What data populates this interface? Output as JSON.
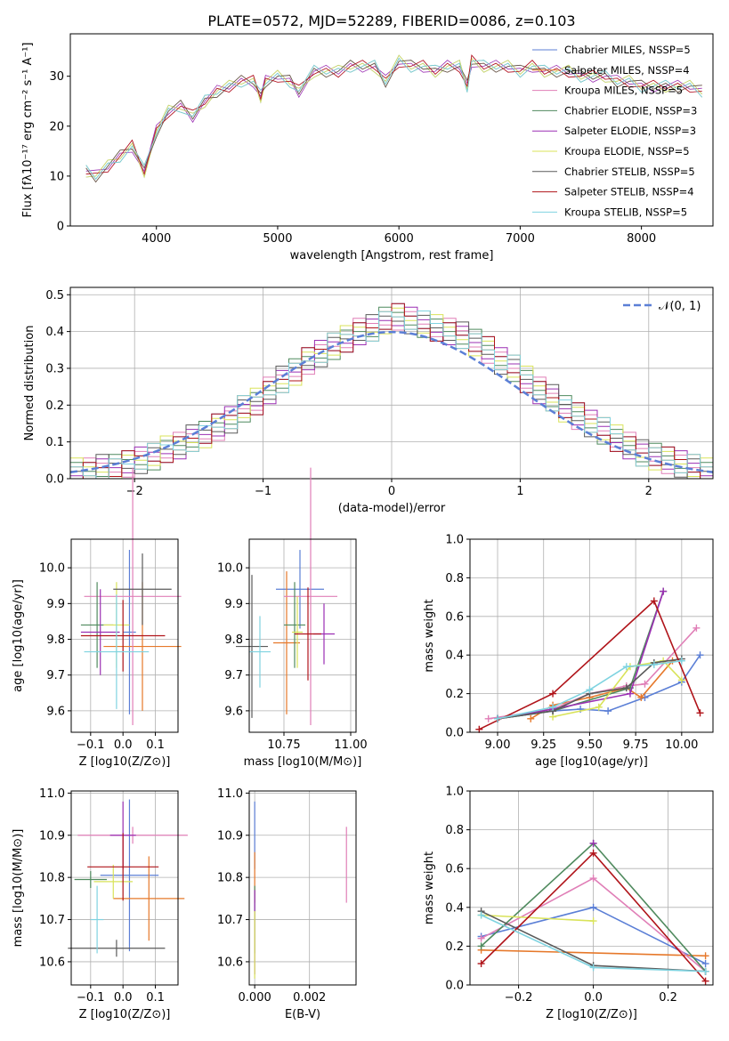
{
  "figure": {
    "title": "PLATE=0572, MJD=52289, FIBERID=0086, z=0.103"
  },
  "colors": {
    "grid": "#b0b0b0",
    "series": [
      "#5b7fd6",
      "#e6782a",
      "#e07fb7",
      "#4f8a5e",
      "#9b2fb3",
      "#d9e35a",
      "#5a5a5a",
      "#b0141a",
      "#7fd3e0"
    ]
  },
  "chart_data": [
    {
      "id": "spectrum",
      "type": "line",
      "xlabel": "wavelength [Angstrom, rest frame]",
      "ylabel": "Flux [fλ10⁻¹⁷ erg cm⁻² s⁻¹ A⁻¹]",
      "xlim": [
        3290,
        8590
      ],
      "ylim": [
        0,
        38.5
      ],
      "xticks": [
        4000,
        5000,
        6000,
        7000,
        8000
      ],
      "yticks": [
        0,
        10,
        20,
        30
      ],
      "grid": false,
      "legend": "top-right",
      "legend_entries": [
        "Chabrier MILES, NSSP=5",
        "Salpeter MILES, NSSP=4",
        "Kroupa MILES, NSSP=5",
        "Chabrier ELODIE, NSSP=3",
        "Salpeter ELODIE, NSSP=3",
        "Kroupa ELODIE, NSSP=5",
        "Chabrier STELIB, NSSP=5",
        "Salpeter STELIB, NSSP=4",
        "Kroupa STELIB, NSSP=5"
      ],
      "x": [
        3420,
        3500,
        3600,
        3700,
        3800,
        3900,
        4000,
        4100,
        4200,
        4300,
        4400,
        4500,
        4600,
        4700,
        4800,
        4860,
        4900,
        5000,
        5100,
        5175,
        5300,
        5400,
        5500,
        5600,
        5700,
        5800,
        5890,
        6000,
        6100,
        6200,
        6300,
        6400,
        6500,
        6563,
        6600,
        6700,
        6800,
        6900,
        7000,
        7100,
        7200,
        7300,
        7400,
        7500,
        7600,
        7700,
        7800,
        7900,
        8000,
        8100,
        8200,
        8300,
        8400,
        8500
      ],
      "y": [
        11,
        10,
        12,
        14,
        16,
        11,
        19,
        23,
        24,
        22,
        25,
        27,
        28,
        29,
        29,
        26,
        29,
        30,
        29,
        27,
        31,
        31,
        31,
        32,
        32,
        32,
        29,
        33,
        32,
        32,
        31,
        32,
        32,
        28,
        33,
        32,
        32,
        32,
        31,
        32,
        31,
        31,
        31,
        30,
        30,
        30,
        29,
        29,
        28,
        28,
        28,
        28,
        28,
        27
      ]
    },
    {
      "id": "residuals",
      "type": "bar",
      "xlabel": "(data-model)/error",
      "ylabel": "Normed distribution",
      "xlim": [
        -2.5,
        2.5
      ],
      "ylim": [
        0,
        0.52
      ],
      "xticks": [
        -2,
        -1,
        0,
        1,
        2
      ],
      "xtick_labels": [
        "−2",
        "−1",
        "0",
        "1",
        "2"
      ],
      "yticks": [
        0.0,
        0.1,
        0.2,
        0.3,
        0.4,
        0.5
      ],
      "grid": true,
      "legend": "top-right",
      "legend_label": "𝒩(0, 1)",
      "bin_width": 0.1,
      "x": [
        -2.5,
        -2.4,
        -2.3,
        -2.2,
        -2.1,
        -2.0,
        -1.9,
        -1.8,
        -1.7,
        -1.6,
        -1.5,
        -1.4,
        -1.3,
        -1.2,
        -1.1,
        -1.0,
        -0.9,
        -0.8,
        -0.7,
        -0.6,
        -0.5,
        -0.4,
        -0.3,
        -0.2,
        -0.1,
        0.0,
        0.1,
        0.2,
        0.3,
        0.4,
        0.5,
        0.6,
        0.7,
        0.8,
        0.9,
        1.0,
        1.1,
        1.2,
        1.3,
        1.4,
        1.5,
        1.6,
        1.7,
        1.8,
        1.9,
        2.0,
        2.1,
        2.2,
        2.3,
        2.4
      ],
      "values": [
        0.02,
        0.02,
        0.03,
        0.03,
        0.04,
        0.05,
        0.06,
        0.08,
        0.09,
        0.11,
        0.12,
        0.14,
        0.16,
        0.19,
        0.21,
        0.24,
        0.27,
        0.29,
        0.32,
        0.34,
        0.36,
        0.38,
        0.4,
        0.41,
        0.43,
        0.44,
        0.43,
        0.42,
        0.41,
        0.4,
        0.39,
        0.37,
        0.35,
        0.32,
        0.3,
        0.27,
        0.24,
        0.22,
        0.19,
        0.17,
        0.15,
        0.13,
        0.11,
        0.09,
        0.07,
        0.06,
        0.05,
        0.04,
        0.03,
        0.02
      ]
    },
    {
      "id": "age-vs-z",
      "type": "scatter",
      "xlabel": "Z [log10(Z/Z⊙)]",
      "ylabel": "age  [log10(age/yr)]",
      "xlim": [
        -0.16,
        0.17
      ],
      "ylim": [
        9.54,
        10.08
      ],
      "xticks": [
        -0.1,
        0.0,
        0.1
      ],
      "xtick_labels": [
        "−0.1",
        "0.0",
        "0.1"
      ],
      "yticks": [
        9.6,
        9.7,
        9.8,
        9.9,
        10.0
      ],
      "grid": true,
      "points": [
        {
          "x": 0.02,
          "y": 9.82,
          "xerr": 0.02,
          "yerr": 0.23
        },
        {
          "x": 0.06,
          "y": 9.78,
          "xerr": 0.12,
          "yerr": 0.18
        },
        {
          "x": 0.03,
          "y": 9.92,
          "xerr": 0.15,
          "yerr": 0.36
        },
        {
          "x": -0.08,
          "y": 9.84,
          "xerr": 0.05,
          "yerr": 0.12
        },
        {
          "x": -0.07,
          "y": 9.82,
          "xerr": 0.06,
          "yerr": 0.12
        },
        {
          "x": -0.02,
          "y": 9.84,
          "xerr": 0.04,
          "yerr": 0.12
        },
        {
          "x": 0.06,
          "y": 9.94,
          "xerr": 0.09,
          "yerr": 0.1
        },
        {
          "x": 0.0,
          "y": 9.81,
          "xerr": 0.13,
          "yerr": 0.1
        },
        {
          "x": -0.02,
          "y": 9.765,
          "xerr": 0.1,
          "yerr": 0.16
        }
      ]
    },
    {
      "id": "age-vs-mass",
      "type": "scatter",
      "xlabel": "mass [log10(M/M⊙)]",
      "ylabel": "",
      "xlim": [
        10.62,
        11.02
      ],
      "ylim": [
        9.54,
        10.08
      ],
      "xticks": [
        10.75,
        11.0
      ],
      "xtick_labels": [
        "10.75",
        "11.00"
      ],
      "yticks": [
        9.6,
        9.7,
        9.8,
        9.9,
        10.0
      ],
      "grid": true,
      "points": [
        {
          "x": 10.81,
          "y": 9.94,
          "xerr": 0.09,
          "yerr": 0.11
        },
        {
          "x": 10.76,
          "y": 9.79,
          "xerr": 0.05,
          "yerr": 0.2
        },
        {
          "x": 10.85,
          "y": 9.92,
          "xerr": 0.1,
          "yerr": 0.36
        },
        {
          "x": 10.79,
          "y": 9.84,
          "xerr": 0.04,
          "yerr": 0.12
        },
        {
          "x": 10.9,
          "y": 9.815,
          "xerr": 0.04,
          "yerr": 0.085
        },
        {
          "x": 10.8,
          "y": 9.82,
          "xerr": 0.02,
          "yerr": 0.1
        },
        {
          "x": 10.63,
          "y": 9.78,
          "xerr": 0.06,
          "yerr": 0.2
        },
        {
          "x": 10.84,
          "y": 9.815,
          "xerr": 0.05,
          "yerr": 0.13
        },
        {
          "x": 10.66,
          "y": 9.765,
          "xerr": 0.04,
          "yerr": 0.1
        }
      ]
    },
    {
      "id": "weight-vs-age",
      "type": "line",
      "xlabel": "age  [log10(age/yr)]",
      "ylabel": "mass weight",
      "xlim": [
        8.85,
        10.17
      ],
      "ylim": [
        0.0,
        1.0
      ],
      "xticks": [
        9.0,
        9.25,
        9.5,
        9.75,
        10.0
      ],
      "xtick_labels": [
        "9.00",
        "9.25",
        "9.50",
        "9.75",
        "10.00"
      ],
      "yticks": [
        0.0,
        0.2,
        0.4,
        0.6,
        0.8,
        1.0
      ],
      "grid": true,
      "series": [
        {
          "x": [
            9.0,
            9.3,
            9.45,
            9.6,
            9.8,
            10.0,
            10.1
          ],
          "values": [
            0.07,
            0.11,
            0.12,
            0.11,
            0.18,
            0.26,
            0.4
          ]
        },
        {
          "x": [
            9.18,
            9.3,
            9.5,
            9.7,
            9.78,
            9.95
          ],
          "values": [
            0.07,
            0.14,
            0.18,
            0.23,
            0.18,
            0.37
          ]
        },
        {
          "x": [
            8.95,
            9.3,
            9.5,
            9.7,
            9.8,
            10.08
          ],
          "values": [
            0.07,
            0.12,
            0.2,
            0.24,
            0.25,
            0.54
          ]
        },
        {
          "x": [
            9.0,
            9.3,
            9.72,
            9.9
          ],
          "values": [
            0.07,
            0.11,
            0.23,
            0.73
          ]
        },
        {
          "x": [
            9.0,
            9.3,
            9.72,
            9.9
          ],
          "values": [
            0.07,
            0.12,
            0.2,
            0.73
          ]
        },
        {
          "x": [
            9.3,
            9.55,
            9.72,
            9.9,
            10.0
          ],
          "values": [
            0.08,
            0.13,
            0.34,
            0.37,
            0.27
          ]
        },
        {
          "x": [
            9.0,
            9.3,
            9.5,
            9.7,
            9.85,
            10.0
          ],
          "values": [
            0.07,
            0.11,
            0.2,
            0.23,
            0.36,
            0.38
          ]
        },
        {
          "x": [
            8.9,
            9.3,
            9.85,
            10.1
          ],
          "values": [
            0.015,
            0.2,
            0.68,
            0.1
          ]
        },
        {
          "x": [
            9.0,
            9.3,
            9.5,
            9.7,
            9.85,
            10.0
          ],
          "values": [
            0.07,
            0.13,
            0.22,
            0.34,
            0.35,
            0.37
          ]
        }
      ]
    },
    {
      "id": "mass-vs-z",
      "type": "scatter",
      "xlabel": "Z [log10(Z/Z⊙)]",
      "ylabel": "mass [log10(M/M⊙)]",
      "xlim": [
        -0.16,
        0.17
      ],
      "ylim": [
        10.545,
        11.005
      ],
      "xticks": [
        -0.1,
        0.0,
        0.1
      ],
      "xtick_labels": [
        "−0.1",
        "0.0",
        "0.1"
      ],
      "yticks": [
        10.6,
        10.7,
        10.8,
        10.9,
        11.0
      ],
      "grid": true,
      "points": [
        {
          "x": 0.02,
          "y": 10.805,
          "xerr": 0.09,
          "yerr": 0.18
        },
        {
          "x": 0.08,
          "y": 10.75,
          "xerr": 0.11,
          "yerr": 0.1
        },
        {
          "x": 0.03,
          "y": 10.9,
          "xerr": 0.17,
          "yerr": 0.02
        },
        {
          "x": -0.1,
          "y": 10.795,
          "xerr": 0.05,
          "yerr": 0.02
        },
        {
          "x": 0.0,
          "y": 10.9,
          "xerr": 0.04,
          "yerr": 0.08
        },
        {
          "x": -0.03,
          "y": 10.79,
          "xerr": 0.06,
          "yerr": 0.04
        },
        {
          "x": -0.02,
          "y": 10.632,
          "xerr": 0.15,
          "yerr": 0.02
        },
        {
          "x": 0.0,
          "y": 10.825,
          "xerr": 0.11,
          "yerr": 0.08
        },
        {
          "x": -0.08,
          "y": 10.7,
          "xerr": 0.02,
          "yerr": 0.08
        }
      ]
    },
    {
      "id": "mass-vs-ebv",
      "type": "scatter",
      "xlabel": "E(B-V)",
      "ylabel": "",
      "xlim": [
        -0.0002,
        0.0037
      ],
      "ylim": [
        10.545,
        11.005
      ],
      "xticks": [
        0.0,
        0.002
      ],
      "xtick_labels": [
        "0.000",
        "0.002"
      ],
      "yticks": [
        10.6,
        10.7,
        10.8,
        10.9,
        11.0
      ],
      "grid": true,
      "points": [
        {
          "x": 0.0,
          "y": 10.9,
          "xerr": 0.0,
          "yerr": 0.08
        },
        {
          "x": 0.0,
          "y": 10.8,
          "xerr": 0.0,
          "yerr": 0.06
        },
        {
          "x": 0.00335,
          "y": 10.83,
          "xerr": 0.0,
          "yerr": 0.09
        },
        {
          "x": 0.0,
          "y": 10.7,
          "xerr": 0.0,
          "yerr": 0.08
        },
        {
          "x": 0.0,
          "y": 10.67,
          "xerr": 0.0,
          "yerr": 0.1
        },
        {
          "x": 0.0,
          "y": 10.64,
          "xerr": 0.0,
          "yerr": 0.08
        }
      ]
    },
    {
      "id": "weight-vs-z",
      "type": "line",
      "xlabel": "Z [log10(Z/Z⊙)]",
      "ylabel": "mass weight",
      "xlim": [
        -0.33,
        0.32
      ],
      "ylim": [
        0.0,
        1.0
      ],
      "xticks": [
        -0.2,
        0.0,
        0.2
      ],
      "xtick_labels": [
        "−0.2",
        "0.0",
        "0.2"
      ],
      "yticks": [
        0.0,
        0.2,
        0.4,
        0.6,
        0.8,
        1.0
      ],
      "grid": true,
      "series": [
        {
          "x": [
            -0.3,
            0.0,
            0.3
          ],
          "values": [
            0.25,
            0.4,
            0.11
          ]
        },
        {
          "x": [
            -0.3,
            0.3
          ],
          "values": [
            0.18,
            0.15
          ]
        },
        {
          "x": [
            -0.3,
            0.0,
            0.3
          ],
          "values": [
            0.24,
            0.55,
            0.07
          ]
        },
        {
          "x": [
            -0.3,
            0.0,
            0.3
          ],
          "values": [
            0.2,
            0.73,
            0.07
          ]
        },
        {
          "x": [
            0.0
          ],
          "values": [
            0.73
          ]
        },
        {
          "x": [
            -0.3,
            0.0
          ],
          "values": [
            0.36,
            0.33
          ]
        },
        {
          "x": [
            -0.3,
            0.0,
            0.3
          ],
          "values": [
            0.38,
            0.1,
            0.07
          ]
        },
        {
          "x": [
            -0.3,
            0.0,
            0.3
          ],
          "values": [
            0.11,
            0.68,
            0.02
          ]
        },
        {
          "x": [
            -0.3,
            0.0,
            0.3
          ],
          "values": [
            0.36,
            0.09,
            0.07
          ]
        }
      ]
    }
  ]
}
